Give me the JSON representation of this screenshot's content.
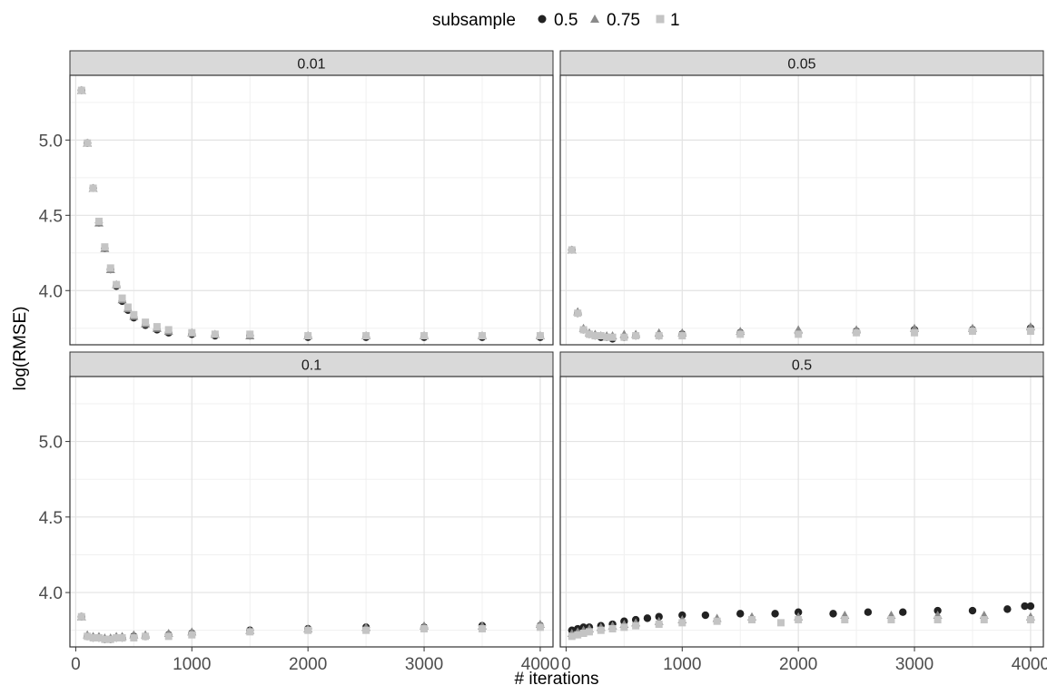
{
  "chart_data": {
    "type": "scatter",
    "facet_type": "facet_wrap",
    "xlabel": "# iterations",
    "ylabel": "log(RMSE)",
    "xlim": [
      -50,
      4110
    ],
    "ylim": [
      3.64,
      5.43
    ],
    "x_ticks": [
      0,
      1000,
      2000,
      3000,
      4000
    ],
    "x_tick_labels": [
      "0",
      "1000",
      "2000",
      "3000",
      "4000"
    ],
    "y_ticks": [
      4.0,
      4.5,
      5.0
    ],
    "y_tick_labels": [
      "4.0",
      "4.5",
      "5.0"
    ],
    "grid": true,
    "legend": {
      "title": "subsample",
      "position": "top",
      "entries": [
        {
          "label": "0.5",
          "shape": "circle",
          "color": "#222222"
        },
        {
          "label": "0.75",
          "shape": "triangle",
          "color": "#8a8a8a"
        },
        {
          "label": "1",
          "shape": "square",
          "color": "#c4c4c4"
        }
      ]
    },
    "panels": [
      {
        "label": "0.01",
        "series": [
          {
            "name": "0.5",
            "x": [
              50,
              100,
              150,
              200,
              250,
              300,
              350,
              400,
              450,
              500,
              600,
              700,
              800,
              1000,
              1200,
              1500,
              2000,
              2500,
              3000,
              3500,
              4000
            ],
            "y": [
              5.33,
              4.98,
              4.68,
              4.45,
              4.28,
              4.14,
              4.03,
              3.93,
              3.87,
              3.82,
              3.77,
              3.74,
              3.72,
              3.71,
              3.7,
              3.7,
              3.69,
              3.69,
              3.69,
              3.69,
              3.69
            ]
          },
          {
            "name": "0.75",
            "x": [
              50,
              100,
              150,
              200,
              250,
              300,
              350,
              400,
              450,
              500,
              600,
              700,
              800,
              1000,
              1200,
              1500,
              2000,
              2500,
              3000,
              3500,
              4000
            ],
            "y": [
              5.33,
              4.98,
              4.68,
              4.45,
              4.28,
              4.14,
              4.04,
              3.94,
              3.88,
              3.83,
              3.78,
              3.75,
              3.73,
              3.72,
              3.71,
              3.7,
              3.7,
              3.7,
              3.7,
              3.7,
              3.7
            ]
          },
          {
            "name": "1",
            "x": [
              50,
              100,
              150,
              200,
              250,
              300,
              350,
              400,
              450,
              500,
              600,
              700,
              800,
              1000,
              1200,
              1500,
              2000,
              2500,
              3000,
              3500,
              4000
            ],
            "y": [
              5.33,
              4.98,
              4.68,
              4.46,
              4.29,
              4.15,
              4.04,
              3.95,
              3.89,
              3.84,
              3.79,
              3.76,
              3.74,
              3.72,
              3.71,
              3.71,
              3.7,
              3.7,
              3.7,
              3.7,
              3.7
            ]
          }
        ]
      },
      {
        "label": "0.05",
        "series": [
          {
            "name": "0.5",
            "x": [
              50,
              100,
              150,
              200,
              250,
              300,
              350,
              400,
              500,
              600,
              800,
              1000,
              1500,
              2000,
              2500,
              3000,
              3500,
              4000
            ],
            "y": [
              4.27,
              3.85,
              3.74,
              3.71,
              3.7,
              3.69,
              3.69,
              3.68,
              3.69,
              3.7,
              3.7,
              3.71,
              3.72,
              3.72,
              3.73,
              3.74,
              3.74,
              3.75
            ]
          },
          {
            "name": "0.75",
            "x": [
              50,
              100,
              150,
              200,
              250,
              300,
              350,
              400,
              500,
              600,
              800,
              1000,
              1500,
              2000,
              2500,
              3000,
              3500,
              4000
            ],
            "y": [
              4.27,
              3.86,
              3.75,
              3.72,
              3.71,
              3.7,
              3.7,
              3.7,
              3.71,
              3.71,
              3.72,
              3.72,
              3.73,
              3.74,
              3.74,
              3.75,
              3.75,
              3.76
            ]
          },
          {
            "name": "1",
            "x": [
              50,
              100,
              150,
              200,
              250,
              300,
              350,
              400,
              500,
              600,
              800,
              1000,
              1500,
              2000,
              2500,
              3000,
              3500,
              4000
            ],
            "y": [
              4.27,
              3.85,
              3.74,
              3.71,
              3.7,
              3.7,
              3.69,
              3.69,
              3.69,
              3.7,
              3.7,
              3.7,
              3.71,
              3.71,
              3.72,
              3.72,
              3.73,
              3.73
            ]
          }
        ]
      },
      {
        "label": "0.1",
        "series": [
          {
            "name": "0.5",
            "x": [
              50,
              100,
              150,
              200,
              250,
              300,
              350,
              400,
              500,
              600,
              800,
              1000,
              1500,
              2000,
              2500,
              3000,
              3500,
              4000
            ],
            "y": [
              3.84,
              3.71,
              3.7,
              3.7,
              3.69,
              3.69,
              3.7,
              3.7,
              3.71,
              3.71,
              3.72,
              3.73,
              3.75,
              3.76,
              3.77,
              3.77,
              3.78,
              3.78
            ]
          },
          {
            "name": "0.75",
            "x": [
              50,
              100,
              150,
              200,
              250,
              300,
              350,
              400,
              500,
              600,
              800,
              1000,
              1500,
              2000,
              2500,
              3000,
              3500,
              4000
            ],
            "y": [
              3.84,
              3.72,
              3.71,
              3.71,
              3.7,
              3.7,
              3.71,
              3.71,
              3.72,
              3.72,
              3.73,
              3.74,
              3.75,
              3.76,
              3.77,
              3.78,
              3.78,
              3.79
            ]
          },
          {
            "name": "1",
            "x": [
              50,
              100,
              150,
              200,
              250,
              300,
              350,
              400,
              500,
              600,
              800,
              1000,
              1500,
              2000,
              2500,
              3000,
              3500,
              4000
            ],
            "y": [
              3.84,
              3.71,
              3.7,
              3.7,
              3.69,
              3.69,
              3.7,
              3.7,
              3.7,
              3.71,
              3.71,
              3.72,
              3.74,
              3.75,
              3.75,
              3.76,
              3.76,
              3.77
            ]
          }
        ]
      },
      {
        "label": "0.5",
        "series": [
          {
            "name": "0.5",
            "x": [
              50,
              100,
              150,
              200,
              300,
              400,
              500,
              600,
              700,
              800,
              1000,
              1200,
              1500,
              1800,
              2000,
              2300,
              2600,
              2900,
              3200,
              3500,
              3800,
              3950,
              4000
            ],
            "y": [
              3.75,
              3.76,
              3.77,
              3.77,
              3.78,
              3.79,
              3.81,
              3.82,
              3.83,
              3.84,
              3.85,
              3.85,
              3.86,
              3.86,
              3.87,
              3.86,
              3.87,
              3.87,
              3.88,
              3.88,
              3.89,
              3.91,
              3.91
            ]
          },
          {
            "name": "0.75",
            "x": [
              50,
              100,
              150,
              200,
              300,
              400,
              500,
              600,
              800,
              1000,
              1300,
              1600,
              2000,
              2400,
              2800,
              3200,
              3600,
              4000
            ],
            "y": [
              3.73,
              3.74,
              3.75,
              3.76,
              3.77,
              3.78,
              3.79,
              3.8,
              3.81,
              3.82,
              3.83,
              3.84,
              3.84,
              3.85,
              3.85,
              3.85,
              3.85,
              3.84
            ]
          },
          {
            "name": "1",
            "x": [
              50,
              100,
              150,
              200,
              300,
              400,
              500,
              600,
              800,
              1000,
              1300,
              1600,
              1850,
              2000,
              2400,
              2800,
              3200,
              3600,
              4000
            ],
            "y": [
              3.71,
              3.72,
              3.73,
              3.74,
              3.75,
              3.76,
              3.77,
              3.78,
              3.79,
              3.8,
              3.81,
              3.82,
              3.8,
              3.82,
              3.82,
              3.82,
              3.82,
              3.82,
              3.82
            ]
          }
        ]
      }
    ]
  }
}
